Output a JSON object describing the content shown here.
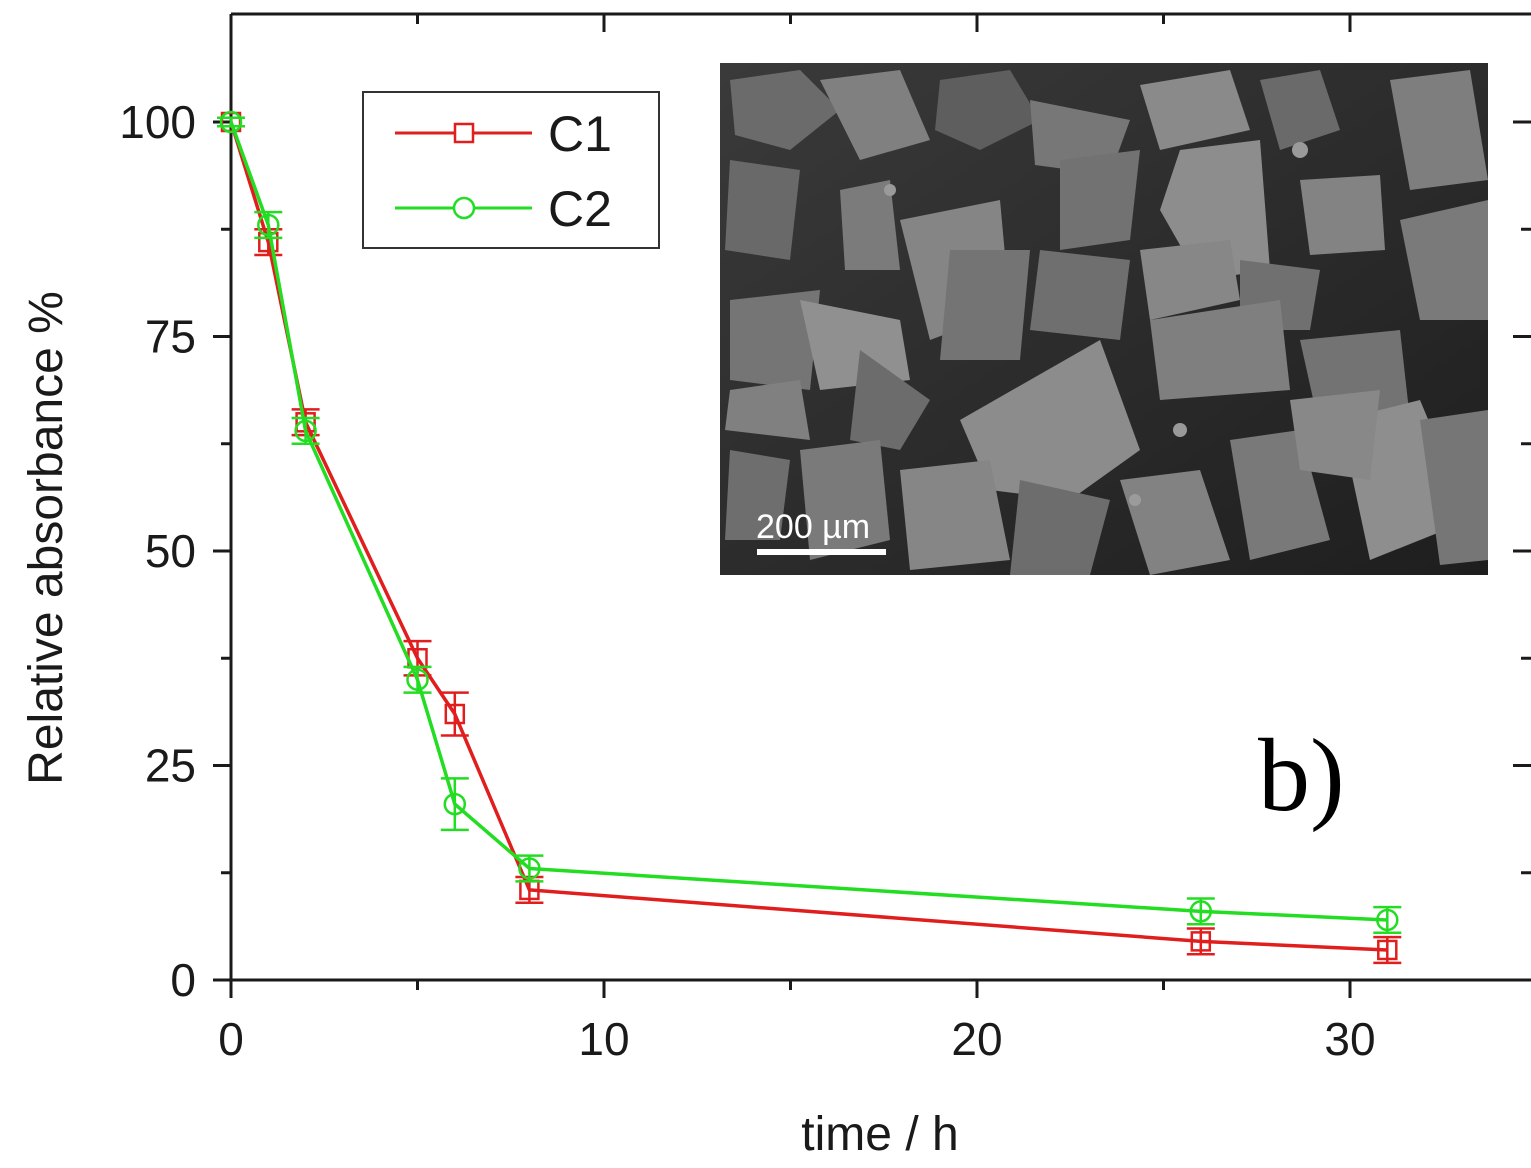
{
  "panel_label": "b)",
  "colors": {
    "C1": "#e01e1e",
    "C2": "#22dd22",
    "axis": "#1a1a1a"
  },
  "inset": {
    "description_icon": "sem-micrograph-image",
    "scale_bar_label": "200 µm"
  },
  "chart_data": {
    "type": "line",
    "xlabel": "time / h",
    "ylabel": "Relative absorbance %",
    "xlim": [
      0,
      35
    ],
    "ylim": [
      0,
      112
    ],
    "xticks": [
      0,
      10,
      20,
      30
    ],
    "yticks": [
      0,
      25,
      50,
      75,
      100
    ],
    "legend_position": "top-left",
    "series": [
      {
        "name": "C1",
        "marker": "square",
        "color": "#e01e1e",
        "x": [
          0,
          1,
          2,
          5,
          6,
          8,
          26,
          31
        ],
        "y": [
          100,
          86,
          65,
          37.5,
          31,
          10.5,
          4.5,
          3.5
        ],
        "err": [
          0.5,
          1.5,
          1.5,
          2,
          2.5,
          1.5,
          1.5,
          1.5
        ]
      },
      {
        "name": "C2",
        "marker": "circle",
        "color": "#22dd22",
        "x": [
          0,
          1,
          2,
          5,
          6,
          8,
          26,
          31
        ],
        "y": [
          100,
          88,
          64,
          35,
          20.5,
          13,
          8,
          7
        ],
        "err": [
          0.5,
          1.5,
          1.5,
          1.5,
          3,
          1.5,
          1.5,
          1.5
        ]
      }
    ]
  }
}
